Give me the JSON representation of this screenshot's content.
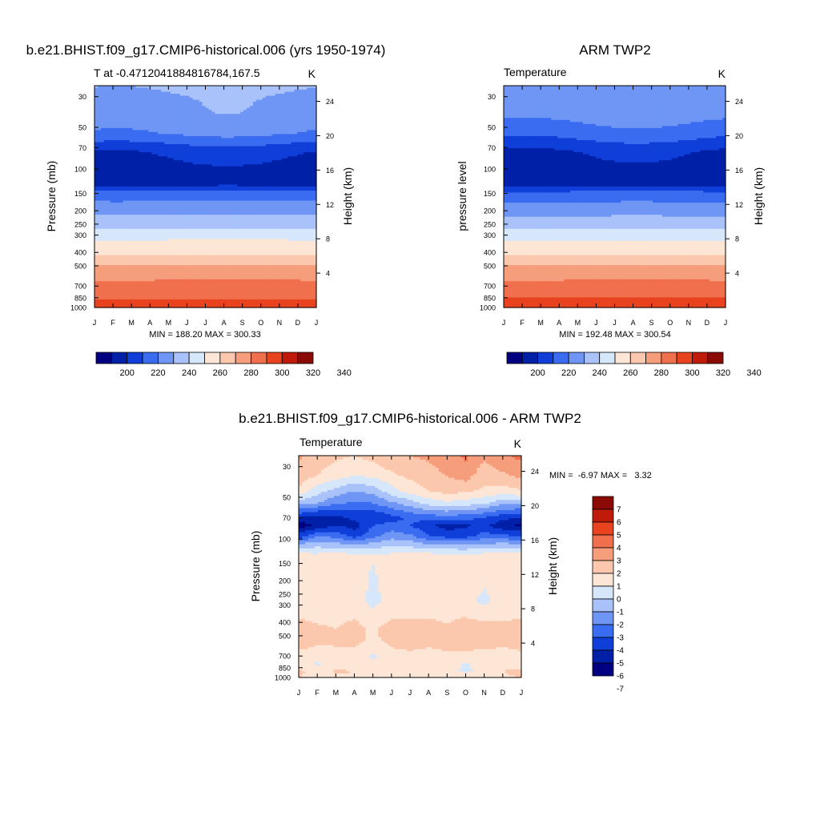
{
  "chart_data": [
    {
      "type": "heatmap",
      "title": "b.e21.BHIST.f09_g17.CMIP6-historical.006 (yrs 1950-1974)",
      "subtitle_left": "T at -0.4712041884816784,167.5",
      "subtitle_right": "K",
      "ylabel": "Pressure (mb)",
      "ylabel_right": "Height (km)",
      "x_ticks": [
        "J",
        "F",
        "M",
        "A",
        "M",
        "J",
        "J",
        "A",
        "S",
        "O",
        "N",
        "D",
        "J"
      ],
      "y_ticks": [
        30,
        50,
        70,
        100,
        150,
        200,
        250,
        300,
        400,
        500,
        700,
        850,
        1000
      ],
      "y_ticks_right": [
        24,
        20,
        16,
        12,
        8,
        4
      ],
      "ylim": [
        1000,
        25
      ],
      "stats": "MIN = 188.20 MAX = 300.33",
      "colorbar_labels": [
        "200",
        "220",
        "240",
        "260",
        "280",
        "300",
        "320",
        "340"
      ],
      "colorbar_colors": [
        "#000080",
        "#0020a8",
        "#0f3fd8",
        "#3a6cf2",
        "#6f96f4",
        "#a9c3fa",
        "#d6e6fb",
        "#fde6d6",
        "#fbc8ad",
        "#f69d7c",
        "#f06f4d",
        "#e8421f",
        "#c01b0a",
        "#8b0a05"
      ],
      "levels": [
        {
          "p": 25,
          "v": 230
        },
        {
          "p": 40,
          "v": 226
        },
        {
          "p": 55,
          "v": 218
        },
        {
          "p": 75,
          "v": 199
        },
        {
          "p": 100,
          "v": 196
        },
        {
          "p": 130,
          "v": 197
        },
        {
          "p": 150,
          "v": 214
        },
        {
          "p": 180,
          "v": 222
        },
        {
          "p": 210,
          "v": 229
        },
        {
          "p": 250,
          "v": 236
        },
        {
          "p": 290,
          "v": 244
        },
        {
          "p": 340,
          "v": 252
        },
        {
          "p": 400,
          "v": 258
        },
        {
          "p": 470,
          "v": 266
        },
        {
          "p": 520,
          "v": 273
        },
        {
          "p": 600,
          "v": 278
        },
        {
          "p": 700,
          "v": 283
        },
        {
          "p": 850,
          "v": 289
        },
        {
          "p": 950,
          "v": 294
        },
        {
          "p": 1000,
          "v": 300
        }
      ],
      "seasonal_amplitude": [
        {
          "p": 30,
          "a": 3
        },
        {
          "p": 55,
          "a": 9
        },
        {
          "p": 75,
          "a": 8
        },
        {
          "p": 110,
          "a": 3
        },
        {
          "p": 200,
          "a": 1
        },
        {
          "p": 1000,
          "a": 0.5
        }
      ]
    },
    {
      "type": "heatmap",
      "title": "ARM TWP2",
      "subtitle_left": "Temperature",
      "subtitle_right": "K",
      "ylabel": "pressure level",
      "ylabel_right": "Height (km)",
      "x_ticks": [
        "J",
        "F",
        "M",
        "A",
        "M",
        "J",
        "J",
        "A",
        "S",
        "O",
        "N",
        "D",
        "J"
      ],
      "y_ticks": [
        30,
        50,
        70,
        100,
        150,
        200,
        250,
        300,
        400,
        500,
        700,
        850,
        1000
      ],
      "y_ticks_right": [
        24,
        20,
        16,
        12,
        8,
        4
      ],
      "ylim": [
        1000,
        25
      ],
      "stats": "MIN = 192.48 MAX = 300.54",
      "colorbar_labels": [
        "200",
        "220",
        "240",
        "260",
        "280",
        "300",
        "320",
        "340"
      ],
      "colorbar_colors": [
        "#000080",
        "#0020a8",
        "#0f3fd8",
        "#3a6cf2",
        "#6f96f4",
        "#a9c3fa",
        "#d6e6fb",
        "#fde6d6",
        "#fbc8ad",
        "#f69d7c",
        "#f06f4d",
        "#e8421f",
        "#c01b0a",
        "#8b0a05"
      ],
      "levels": [
        {
          "p": 25,
          "v": 228
        },
        {
          "p": 40,
          "v": 222
        },
        {
          "p": 55,
          "v": 212
        },
        {
          "p": 75,
          "v": 197
        },
        {
          "p": 100,
          "v": 195
        },
        {
          "p": 130,
          "v": 197
        },
        {
          "p": 150,
          "v": 213
        },
        {
          "p": 180,
          "v": 221
        },
        {
          "p": 210,
          "v": 228
        },
        {
          "p": 250,
          "v": 235
        },
        {
          "p": 290,
          "v": 243
        },
        {
          "p": 340,
          "v": 251
        },
        {
          "p": 400,
          "v": 258
        },
        {
          "p": 470,
          "v": 266
        },
        {
          "p": 520,
          "v": 272
        },
        {
          "p": 600,
          "v": 278
        },
        {
          "p": 700,
          "v": 283
        },
        {
          "p": 850,
          "v": 290
        },
        {
          "p": 950,
          "v": 295
        },
        {
          "p": 1000,
          "v": 300
        }
      ],
      "seasonal_amplitude": [
        {
          "p": 30,
          "a": 3
        },
        {
          "p": 55,
          "a": 9
        },
        {
          "p": 75,
          "a": 9
        },
        {
          "p": 110,
          "a": 3
        },
        {
          "p": 200,
          "a": 1
        },
        {
          "p": 1000,
          "a": 0.5
        }
      ]
    },
    {
      "type": "heatmap",
      "title": "b.e21.BHIST.f09_g17.CMIP6-historical.006 - ARM TWP2",
      "subtitle_left": "Temperature",
      "subtitle_right": "K",
      "ylabel": "Pressure (mb)",
      "ylabel_right": "Height (km)",
      "x_ticks": [
        "J",
        "F",
        "M",
        "A",
        "M",
        "J",
        "J",
        "A",
        "S",
        "O",
        "N",
        "D",
        "J"
      ],
      "y_ticks": [
        30,
        50,
        70,
        100,
        150,
        200,
        250,
        300,
        400,
        500,
        700,
        850,
        1000
      ],
      "y_ticks_right": [
        24,
        20,
        16,
        12,
        8,
        4
      ],
      "ylim": [
        1000,
        25
      ],
      "stats": "MIN =  -6.97 MAX =   3.32",
      "colorbar_labels": [
        "7",
        "6",
        "5",
        "4",
        "3",
        "2",
        "1",
        "0",
        "-1",
        "-2",
        "-3",
        "-4",
        "-5",
        "-6",
        "-7"
      ],
      "colorbar_colors": [
        "#8b0a05",
        "#c01b0a",
        "#e8421f",
        "#f06f4d",
        "#f69d7c",
        "#fbc8ad",
        "#fde6d6",
        "#d6e6fb",
        "#a9c3fa",
        "#6f96f4",
        "#3a6cf2",
        "#0f3fd8",
        "#0020a8",
        "#000080"
      ],
      "months": [
        "J",
        "F",
        "M",
        "A",
        "M",
        "J",
        "J",
        "A",
        "S",
        "O",
        "N",
        "D",
        "J"
      ],
      "diff_grid": [
        {
          "p": 25,
          "v": [
            2.2,
            1.5,
            1.2,
            1.0,
            1.4,
            1.8,
            2.0,
            2.2,
            2.6,
            3.2,
            2.2,
            2.8,
            3.3
          ]
        },
        {
          "p": 35,
          "v": [
            1.6,
            1.0,
            0.5,
            0.0,
            0.2,
            0.8,
            1.2,
            1.6,
            2.0,
            2.4,
            1.4,
            1.8,
            2.2
          ]
        },
        {
          "p": 45,
          "v": [
            0.8,
            -0.6,
            -1.4,
            -2.0,
            -1.6,
            -0.4,
            0.4,
            1.0,
            1.4,
            1.2,
            0.8,
            0.6,
            0.9
          ]
        },
        {
          "p": 55,
          "v": [
            -1.5,
            -2.0,
            -2.8,
            -3.2,
            -3.0,
            -2.2,
            -1.4,
            -0.6,
            -0.2,
            -0.5,
            -0.8,
            -1.8,
            -1.6
          ]
        },
        {
          "p": 70,
          "v": [
            -5.0,
            -5.6,
            -5.2,
            -4.8,
            -5.0,
            -4.4,
            -3.8,
            -3.6,
            -3.4,
            -3.6,
            -4.0,
            -4.6,
            -5.0
          ]
        },
        {
          "p": 80,
          "v": [
            -6.6,
            -5.8,
            -5.0,
            -5.4,
            -4.0,
            -3.6,
            -4.0,
            -4.8,
            -5.4,
            -5.2,
            -4.6,
            -5.8,
            -6.2
          ]
        },
        {
          "p": 95,
          "v": [
            -4.6,
            -3.0,
            -3.4,
            -4.4,
            -3.4,
            -2.4,
            -2.8,
            -4.0,
            -4.4,
            -4.4,
            -3.6,
            -3.8,
            -4.0
          ]
        },
        {
          "p": 110,
          "v": [
            -1.8,
            -1.4,
            -1.6,
            -2.0,
            -1.6,
            -1.2,
            -1.4,
            -1.8,
            -2.0,
            -2.0,
            -1.8,
            -1.6,
            -1.8
          ]
        },
        {
          "p": 130,
          "v": [
            0.3,
            0.2,
            0.4,
            0.2,
            0.1,
            0.2,
            0.3,
            0.3,
            0.2,
            0.1,
            0.3,
            0.4,
            0.3
          ]
        },
        {
          "p": 200,
          "v": [
            0.6,
            0.5,
            0.6,
            0.6,
            -0.2,
            0.6,
            0.8,
            0.7,
            0.6,
            0.4,
            0.2,
            0.6,
            0.7
          ]
        },
        {
          "p": 280,
          "v": [
            0.7,
            0.6,
            0.7,
            0.7,
            -0.4,
            0.5,
            0.8,
            0.7,
            0.7,
            0.5,
            -0.3,
            0.6,
            0.7
          ]
        },
        {
          "p": 350,
          "v": [
            0.8,
            0.6,
            0.7,
            0.8,
            0.3,
            0.7,
            0.8,
            0.8,
            0.7,
            0.9,
            0.5,
            0.7,
            0.8
          ]
        },
        {
          "p": 450,
          "v": [
            1.6,
            1.2,
            1.0,
            1.4,
            0.8,
            1.6,
            1.4,
            1.5,
            1.2,
            1.5,
            1.6,
            1.3,
            1.6
          ]
        },
        {
          "p": 550,
          "v": [
            1.5,
            1.2,
            1.1,
            1.3,
            0.7,
            1.3,
            1.4,
            1.3,
            1.6,
            1.4,
            1.5,
            1.3,
            1.5
          ]
        },
        {
          "p": 700,
          "v": [
            0.7,
            0.4,
            0.8,
            0.6,
            -0.2,
            0.6,
            0.8,
            0.6,
            0.7,
            0.8,
            0.6,
            0.5,
            0.7
          ]
        },
        {
          "p": 800,
          "v": [
            0.6,
            -0.2,
            0.7,
            0.6,
            0.2,
            0.7,
            0.6,
            0.6,
            0.8,
            -0.2,
            0.6,
            0.7,
            0.6
          ]
        },
        {
          "p": 900,
          "v": [
            1.2,
            0.6,
            1.1,
            1.0,
            0.5,
            0.8,
            0.9,
            1.0,
            0.4,
            -0.3,
            0.5,
            1.0,
            1.2
          ]
        },
        {
          "p": 1000,
          "v": [
            1.0,
            0.8,
            0.9,
            0.9,
            0.8,
            0.9,
            0.9,
            0.9,
            0.8,
            0.8,
            0.9,
            0.9,
            1.0
          ]
        }
      ]
    }
  ]
}
